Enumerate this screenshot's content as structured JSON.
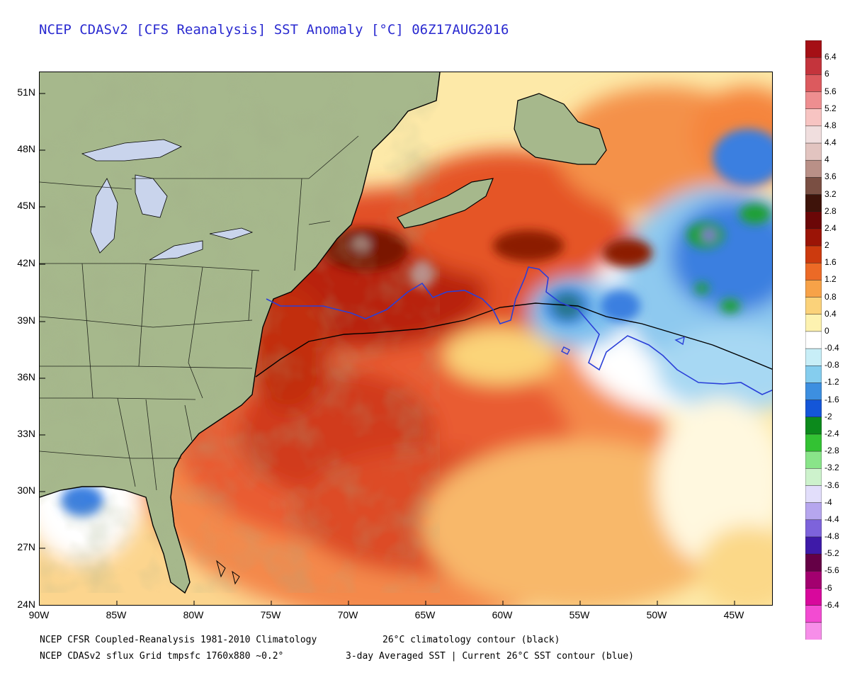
{
  "title": "NCEP CDASv2 [CFS Reanalysis] SST Anomaly [°C] 06Z17AUG2016",
  "map": {
    "lat_labels": [
      "51N",
      "48N",
      "45N",
      "42N",
      "39N",
      "36N",
      "33N",
      "30N",
      "27N",
      "24N"
    ],
    "lon_labels": [
      "90W",
      "85W",
      "80W",
      "75W",
      "70W",
      "65W",
      "60W",
      "55W",
      "50W",
      "45W"
    ],
    "lon_range": [
      -90,
      -42.5
    ],
    "lat_range": [
      24,
      52
    ],
    "contours": {
      "climatology_26C": {
        "color": "#000000",
        "label": "26°C climatology contour (black)"
      },
      "current_26C": {
        "color": "#2a3fd8",
        "label": "Current 26°C SST contour (blue)"
      }
    }
  },
  "colorbar": {
    "title": "SST Anomaly [°C]",
    "labels": [
      "6.4",
      "6",
      "5.6",
      "5.2",
      "4.8",
      "4.4",
      "4",
      "3.6",
      "3.2",
      "2.8",
      "2.4",
      "2",
      "1.6",
      "1.2",
      "0.8",
      "0.4",
      "0",
      "-0.4",
      "-0.8",
      "-1.2",
      "-1.6",
      "-2",
      "-2.4",
      "-2.8",
      "-3.2",
      "-3.6",
      "-4",
      "-4.4",
      "-4.8",
      "-5.2",
      "-5.6",
      "-6",
      "-6.4"
    ],
    "colors": [
      "#a50f15",
      "#c4343c",
      "#dc5a5e",
      "#ee8e90",
      "#f7c4c2",
      "#f0dede",
      "#e2c4c0",
      "#b99087",
      "#7a4f43",
      "#3e130a",
      "#6b0707",
      "#9b1406",
      "#cc3a0e",
      "#ec6a26",
      "#f7a248",
      "#fbd27a",
      "#fdf2b0",
      "#ffffff",
      "#c8eef7",
      "#85cdee",
      "#3d8fe0",
      "#1456d8",
      "#0c8a1c",
      "#33c233",
      "#89e489",
      "#cdf2cc",
      "#e2defb",
      "#b6a6ee",
      "#7d63db",
      "#3e1aa8",
      "#650046",
      "#a3006f",
      "#d8089c",
      "#f34bd2",
      "#f78ee9"
    ]
  },
  "footer": {
    "line1_left": "NCEP CFSR Coupled-Reanalysis 1981-2010 Climatology",
    "line1_right": "26°C climatology contour (black)",
    "line2_left": "NCEP CDASv2 sflux Grid tmpsfc 1760x880 ~0.2°",
    "line2_right": "3-day Averaged SST | Current 26°C SST contour (blue)"
  }
}
